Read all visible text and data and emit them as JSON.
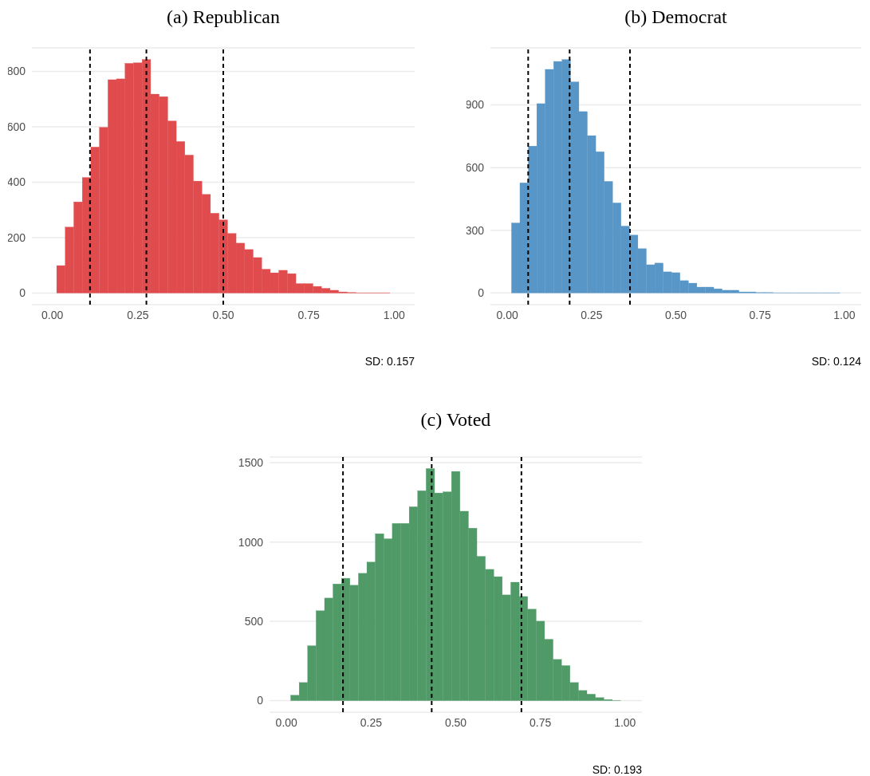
{
  "chart_data": [
    {
      "type": "histogram",
      "title": "(a) Republican",
      "color": "#e04b4d",
      "bins": [
        0.0125,
        0.0375,
        0.0625,
        0.0875,
        0.1125,
        0.1375,
        0.1625,
        0.1875,
        0.2125,
        0.2375,
        0.2625,
        0.2875,
        0.3125,
        0.3375,
        0.3625,
        0.3875,
        0.4125,
        0.4375,
        0.4625,
        0.4875,
        0.5125,
        0.5375,
        0.5625,
        0.5875,
        0.6125,
        0.6375,
        0.6625,
        0.6875,
        0.7125,
        0.7375,
        0.7625,
        0.7875,
        0.8125,
        0.8375,
        0.8625,
        0.8875,
        0.9125,
        0.9375,
        0.9625,
        0.9875
      ],
      "values": [
        99,
        238,
        329,
        417,
        527,
        598,
        770,
        773,
        829,
        831,
        843,
        718,
        709,
        621,
        547,
        498,
        404,
        356,
        288,
        264,
        215,
        180,
        157,
        128,
        86,
        73,
        82,
        70,
        34,
        34,
        24,
        17,
        10,
        4,
        2,
        1,
        1,
        1,
        1
      ],
      "xlim": [
        -0.06,
        1.06
      ],
      "xticks": [
        {
          "value": 0,
          "label": "0.00"
        },
        {
          "value": 0.25,
          "label": "0.25"
        },
        {
          "value": 0.5,
          "label": "0.50"
        },
        {
          "value": 0.75,
          "label": "0.75"
        },
        {
          "value": 1,
          "label": "1.00"
        }
      ],
      "ylim": [
        -42,
        885
      ],
      "yticks": [
        0,
        200,
        400,
        600,
        800
      ],
      "grid": "y",
      "ref_lines": [
        {
          "axis": "x",
          "value": 0.11,
          "color": "#000000",
          "line_style": "dashed"
        },
        {
          "axis": "x",
          "value": 0.275,
          "color": "#000000",
          "line_style": "dashed"
        },
        {
          "axis": "x",
          "value": 0.5,
          "color": "#000000",
          "line_style": "dashed"
        }
      ],
      "annotations": [
        "SD: 0.157"
      ]
    },
    {
      "type": "histogram",
      "title": "(b) Democrat",
      "color": "#5796c6",
      "bins": [
        0.0125,
        0.0375,
        0.0625,
        0.0875,
        0.1125,
        0.1375,
        0.1625,
        0.1875,
        0.2125,
        0.2375,
        0.2625,
        0.2875,
        0.3125,
        0.3375,
        0.3625,
        0.3875,
        0.4125,
        0.4375,
        0.4625,
        0.4875,
        0.5125,
        0.5375,
        0.5625,
        0.5875,
        0.6125,
        0.6375,
        0.6625,
        0.6875,
        0.7125,
        0.7375,
        0.7625,
        0.7875,
        0.8125,
        0.8375,
        0.8625,
        0.8875,
        0.9125,
        0.9375,
        0.9625,
        0.9875
      ],
      "values": [
        335,
        527,
        703,
        906,
        1070,
        1108,
        1117,
        1010,
        868,
        753,
        676,
        534,
        431,
        320,
        277,
        212,
        135,
        143,
        101,
        97,
        59,
        47,
        28,
        28,
        20,
        13,
        13,
        5,
        5,
        2,
        2,
        1,
        1,
        1,
        1,
        1,
        1,
        1,
        1
      ],
      "xlim": [
        -0.05,
        1.05
      ],
      "xticks": [
        {
          "value": 0,
          "label": "0.00"
        },
        {
          "value": 0.25,
          "label": "0.25"
        },
        {
          "value": 0.5,
          "label": "0.50"
        },
        {
          "value": 0.75,
          "label": "0.75"
        },
        {
          "value": 1,
          "label": "1.00"
        }
      ],
      "ylim": [
        -56,
        1173
      ],
      "yticks": [
        0,
        300,
        600,
        900
      ],
      "grid": "y",
      "ref_lines": [
        {
          "axis": "x",
          "value": 0.062,
          "color": "#000000",
          "line_style": "dashed"
        },
        {
          "axis": "x",
          "value": 0.185,
          "color": "#000000",
          "line_style": "dashed"
        },
        {
          "axis": "x",
          "value": 0.364,
          "color": "#000000",
          "line_style": "dashed"
        }
      ],
      "annotations": [
        "SD: 0.124"
      ]
    },
    {
      "type": "histogram",
      "title": "(c) Voted",
      "color": "#509a67",
      "bins": [
        0.0125,
        0.0375,
        0.0625,
        0.0875,
        0.1125,
        0.1375,
        0.1625,
        0.1875,
        0.2125,
        0.2375,
        0.2625,
        0.2875,
        0.3125,
        0.3375,
        0.3625,
        0.3875,
        0.4125,
        0.4375,
        0.4625,
        0.4875,
        0.5125,
        0.5375,
        0.5625,
        0.5875,
        0.6125,
        0.6375,
        0.6625,
        0.6875,
        0.7125,
        0.7375,
        0.7625,
        0.7875,
        0.8125,
        0.8375,
        0.8625,
        0.8875,
        0.9125,
        0.9375,
        0.9625,
        0.9875
      ],
      "values": [
        34,
        114,
        346,
        567,
        647,
        736,
        772,
        728,
        803,
        874,
        1053,
        1021,
        1118,
        1118,
        1223,
        1324,
        1464,
        1310,
        1317,
        1446,
        1195,
        1088,
        910,
        828,
        782,
        667,
        747,
        657,
        577,
        501,
        387,
        260,
        221,
        114,
        64,
        41,
        19,
        7,
        2
      ],
      "xlim": [
        -0.05,
        1.05
      ],
      "xticks": [
        {
          "value": 0,
          "label": "0.00"
        },
        {
          "value": 0.25,
          "label": "0.25"
        },
        {
          "value": 0.5,
          "label": "0.50"
        },
        {
          "value": 0.75,
          "label": "0.75"
        },
        {
          "value": 1,
          "label": "1.00"
        }
      ],
      "ylim": [
        -73,
        1537
      ],
      "yticks": [
        0,
        500,
        1000,
        1500
      ],
      "grid": "y",
      "ref_lines": [
        {
          "axis": "x",
          "value": 0.167,
          "color": "#000000",
          "line_style": "dashed"
        },
        {
          "axis": "x",
          "value": 0.429,
          "color": "#000000",
          "line_style": "dashed"
        },
        {
          "axis": "x",
          "value": 0.694,
          "color": "#000000",
          "line_style": "dashed"
        }
      ],
      "annotations": [
        "SD: 0.193"
      ]
    }
  ]
}
